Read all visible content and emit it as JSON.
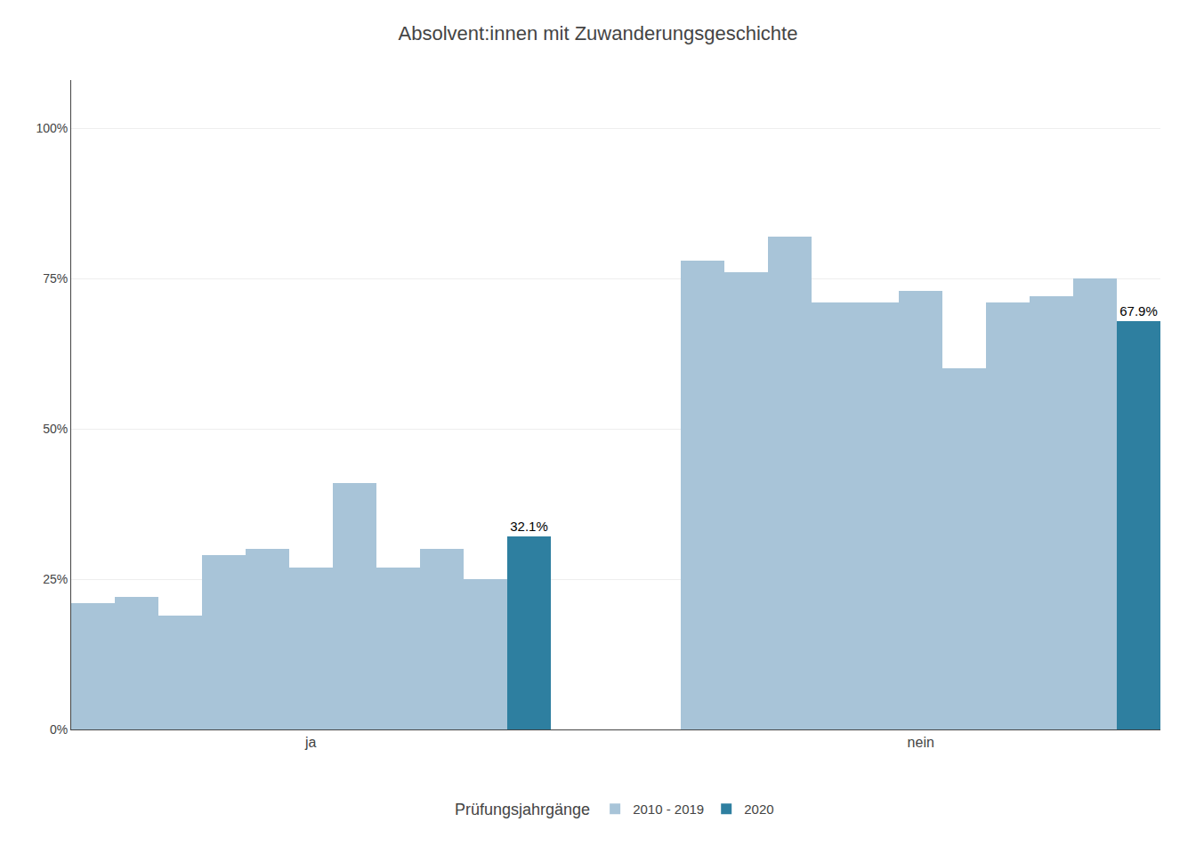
{
  "chart_data": {
    "type": "bar",
    "title": "Absolvent:innen mit Zuwanderungsgeschichte",
    "categories": [
      null,
      null,
      null,
      null,
      null,
      "ja",
      null,
      null,
      null,
      null,
      null,
      null,
      null,
      null,
      null,
      null,
      null,
      null,
      null,
      "nein",
      null,
      null,
      null,
      null,
      null
    ],
    "series": [
      {
        "name": "2010 - 2019",
        "color": "#a8c4d8",
        "values": [
          0.21,
          0.22,
          0.19,
          0.29,
          0.3,
          0.27,
          0.41,
          0.27,
          0.3,
          0.25,
          null,
          null,
          null,
          null,
          0.78,
          0.76,
          0.82,
          0.71,
          0.71,
          0.73,
          0.6,
          0.71,
          0.72,
          0.75,
          null
        ]
      },
      {
        "name": "2020",
        "color": "#2e7fa0",
        "values": [
          null,
          null,
          null,
          null,
          null,
          null,
          null,
          null,
          null,
          null,
          0.321,
          null,
          null,
          null,
          null,
          null,
          null,
          null,
          null,
          null,
          null,
          null,
          null,
          null,
          0.679
        ],
        "data_labels": true,
        "value_labels": [
          null,
          null,
          null,
          null,
          null,
          null,
          null,
          null,
          null,
          null,
          "32.1%",
          null,
          null,
          null,
          null,
          null,
          null,
          null,
          null,
          null,
          null,
          null,
          null,
          null,
          "67.9%"
        ]
      }
    ],
    "legend_title": "Prüfungsjahrgänge",
    "legend": "bottom",
    "ylim": [
      0,
      1.08
    ],
    "yticks": [
      {
        "value": 0.0,
        "label": "0%"
      },
      {
        "value": 0.25,
        "label": "25%"
      },
      {
        "value": 0.5,
        "label": "50%"
      },
      {
        "value": 0.75,
        "label": "75%"
      },
      {
        "value": 1.0,
        "label": "100%"
      }
    ],
    "grid": true
  }
}
